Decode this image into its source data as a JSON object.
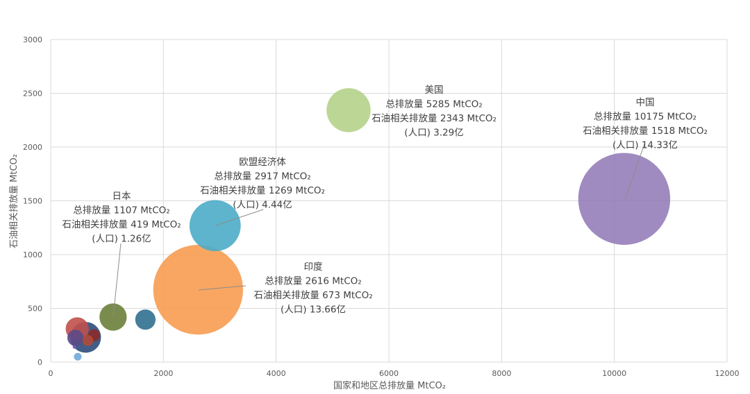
{
  "chart_data": {
    "type": "bubble",
    "xlabel": "国家和地区总排放量 MtCO₂",
    "ylabel": "石油相关排放量 MtCO₂",
    "xlim": [
      0,
      12000
    ],
    "ylim": [
      0,
      3000
    ],
    "xticks": [
      0,
      2000,
      4000,
      6000,
      8000,
      10000,
      12000
    ],
    "yticks": [
      0,
      500,
      1000,
      1500,
      2000,
      2500,
      3000
    ],
    "grid": true,
    "points": [
      {
        "x": 10175,
        "y": 1518,
        "size": 14.33,
        "color": "#8f77b5"
      },
      {
        "x": 2616,
        "y": 673,
        "size": 13.66,
        "color": "#f79646"
      },
      {
        "x": 5285,
        "y": 2343,
        "size": 3.29,
        "color": "#b5d18a"
      },
      {
        "x": 2917,
        "y": 1269,
        "size": 4.44,
        "color": "#4bacc6"
      },
      {
        "x": 1107,
        "y": 419,
        "size": 1.26,
        "color": "#6b7f3a"
      },
      {
        "x": 1680,
        "y": 395,
        "size": 0.7,
        "color": "#31708f"
      },
      {
        "x": 470,
        "y": 310,
        "size": 0.9,
        "color": "#c0504d"
      },
      {
        "x": 620,
        "y": 230,
        "size": 1.6,
        "color": "#2e4b7a"
      },
      {
        "x": 440,
        "y": 225,
        "size": 0.45,
        "color": "#5b4a8a"
      },
      {
        "x": 770,
        "y": 250,
        "size": 0.25,
        "color": "#8b2b2b"
      },
      {
        "x": 660,
        "y": 200,
        "size": 0.2,
        "color": "#b04a3a"
      },
      {
        "x": 480,
        "y": 50,
        "size": 0.1,
        "color": "#6fa8dc"
      },
      {
        "x": 420,
        "y": 140,
        "size": 0.02,
        "color": "#7e57c2"
      }
    ],
    "annotations": [
      {
        "lines": [
          "中国",
          "总排放量 10175 MtCO₂",
          "石油相关排放量 1518 MtCO₂",
          "(人口) 14.33亿"
        ],
        "leader": true
      },
      {
        "lines": [
          "美国",
          "总排放量 5285 MtCO₂",
          "石油相关排放量 2343 MtCO₂",
          "(人口) 3.29亿"
        ],
        "leader": false
      },
      {
        "lines": [
          "欧盟经济体",
          "总排放量 2917 MtCO₂",
          "石油相关排放量 1269 MtCO₂",
          "(人口) 4.44亿"
        ],
        "leader": true
      },
      {
        "lines": [
          "印度",
          "总排放量 2616 MtCO₂",
          "石油相关排放量 673 MtCO₂",
          "(人口) 13.66亿"
        ],
        "leader": true
      },
      {
        "lines": [
          "日本",
          "总排放量 1107 MtCO₂",
          "石油相关排放量 419 MtCO₂",
          "(人口) 1.26亿"
        ],
        "leader": true
      }
    ]
  }
}
